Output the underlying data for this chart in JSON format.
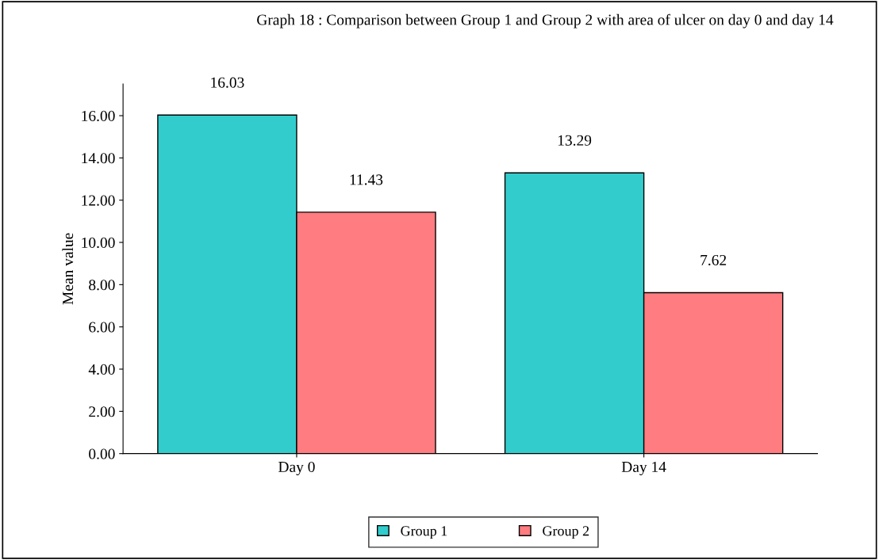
{
  "chart_data": {
    "type": "bar",
    "title": "Graph 18 : Comparison between Group 1 and Group 2 with area of ulcer on day 0 and day 14",
    "ylabel": "Mean value",
    "categories": [
      "Day 0",
      "Day 14"
    ],
    "series": [
      {
        "name": "Group 1",
        "color": "#33cccc",
        "values": [
          16.03,
          13.29
        ]
      },
      {
        "name": "Group 2",
        "color": "#ff7c80",
        "values": [
          11.43,
          7.62
        ]
      }
    ],
    "ylim": [
      0,
      17.5
    ],
    "yticks": [
      {
        "value": 0,
        "label": "0.00"
      },
      {
        "value": 2,
        "label": "2.00"
      },
      {
        "value": 4,
        "label": "4.00"
      },
      {
        "value": 6,
        "label": "6.00"
      },
      {
        "value": 8,
        "label": "8.00"
      },
      {
        "value": 10,
        "label": "10.00"
      },
      {
        "value": 12,
        "label": "12.00"
      },
      {
        "value": 14,
        "label": "14.00"
      },
      {
        "value": 16,
        "label": "16.00"
      }
    ],
    "data_labels": true,
    "grid": false,
    "legend": "bottom"
  }
}
